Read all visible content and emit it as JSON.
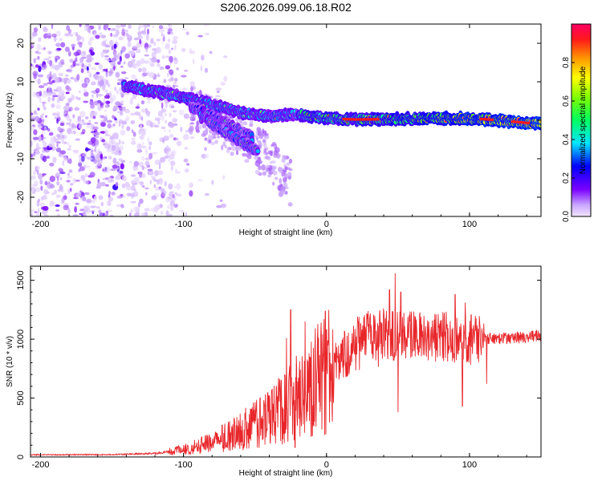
{
  "title": "S206.2026.099.06.18.R02",
  "chart_data": [
    {
      "type": "heatmap",
      "xlabel": "Height of straight line (km)",
      "ylabel": "Frequency (Hz)",
      "xlim": [
        -207,
        150
      ],
      "ylim": [
        -25,
        25
      ],
      "xticks": [
        -200,
        -100,
        0,
        100
      ],
      "xtick_labels": [
        "-200",
        "-100",
        "0",
        "100"
      ],
      "yticks": [
        -20,
        -10,
        0,
        10,
        20
      ],
      "ytick_labels": [
        "-20",
        "-10",
        "0",
        "10",
        "20"
      ],
      "colorbar": {
        "label": "Normalized spectral amplitude",
        "range": [
          0,
          1
        ],
        "ticks": [
          0.0,
          0.2,
          0.4,
          0.6,
          0.8
        ],
        "tick_labels": [
          "0.0",
          "0.2",
          "0.4",
          "0.6",
          "0.8"
        ]
      },
      "ridges": [
        {
          "name": "main",
          "x": [
            -142,
            -120,
            -100,
            -80,
            -60,
            -40,
            -20,
            0,
            20,
            50,
            80,
            110,
            150
          ],
          "y": [
            9,
            7.5,
            6,
            4,
            2,
            1,
            1.5,
            0.5,
            0.2,
            0.3,
            0.5,
            0.3,
            -1
          ]
        },
        {
          "name": "branch-1",
          "x": [
            -95,
            -80,
            -65,
            -52
          ],
          "y": [
            3.5,
            1,
            -2,
            -4.5
          ]
        },
        {
          "name": "branch-2",
          "x": [
            -88,
            -75,
            -62,
            -48
          ],
          "y": [
            1,
            -2,
            -5,
            -8
          ]
        }
      ]
    },
    {
      "type": "line",
      "xlabel": "Height of straight line (km)",
      "ylabel": "SNR (10 * v/v)",
      "xlim": [
        -207,
        150
      ],
      "ylim": [
        0,
        1620
      ],
      "xticks": [
        -200,
        -100,
        0,
        100
      ],
      "xtick_labels": [
        "-200",
        "-100",
        "0",
        "100"
      ],
      "yticks": [
        0,
        500,
        1000,
        1500
      ],
      "ytick_labels": [
        "0",
        "500",
        "1000",
        "1500"
      ],
      "color": "#e8262a",
      "envelope": {
        "x": [
          -207,
          -150,
          -120,
          -100,
          -80,
          -60,
          -40,
          -30,
          -20,
          -10,
          0,
          10,
          20,
          30,
          50,
          70,
          100,
          130,
          150
        ],
        "y": [
          18,
          20,
          30,
          60,
          120,
          220,
          330,
          420,
          520,
          600,
          720,
          850,
          950,
          1010,
          1040,
          1030,
          1000,
          1010,
          1030
        ]
      },
      "spikes": [
        {
          "x": -28,
          "y": 1010
        },
        {
          "x": -25,
          "y": 1250
        },
        {
          "x": -15,
          "y": 1150
        },
        {
          "x": 0,
          "y": 1080
        },
        {
          "x": 44,
          "y": 1420
        },
        {
          "x": 48,
          "y": 1560
        },
        {
          "x": 52,
          "y": 1400
        },
        {
          "x": 90,
          "y": 1380
        },
        {
          "x": 97,
          "y": 1310
        }
      ],
      "dips": [
        {
          "x": -22,
          "y": 80
        },
        {
          "x": -10,
          "y": 180
        },
        {
          "x": 50,
          "y": 380
        },
        {
          "x": 95,
          "y": 430
        },
        {
          "x": 112,
          "y": 620
        }
      ]
    }
  ]
}
